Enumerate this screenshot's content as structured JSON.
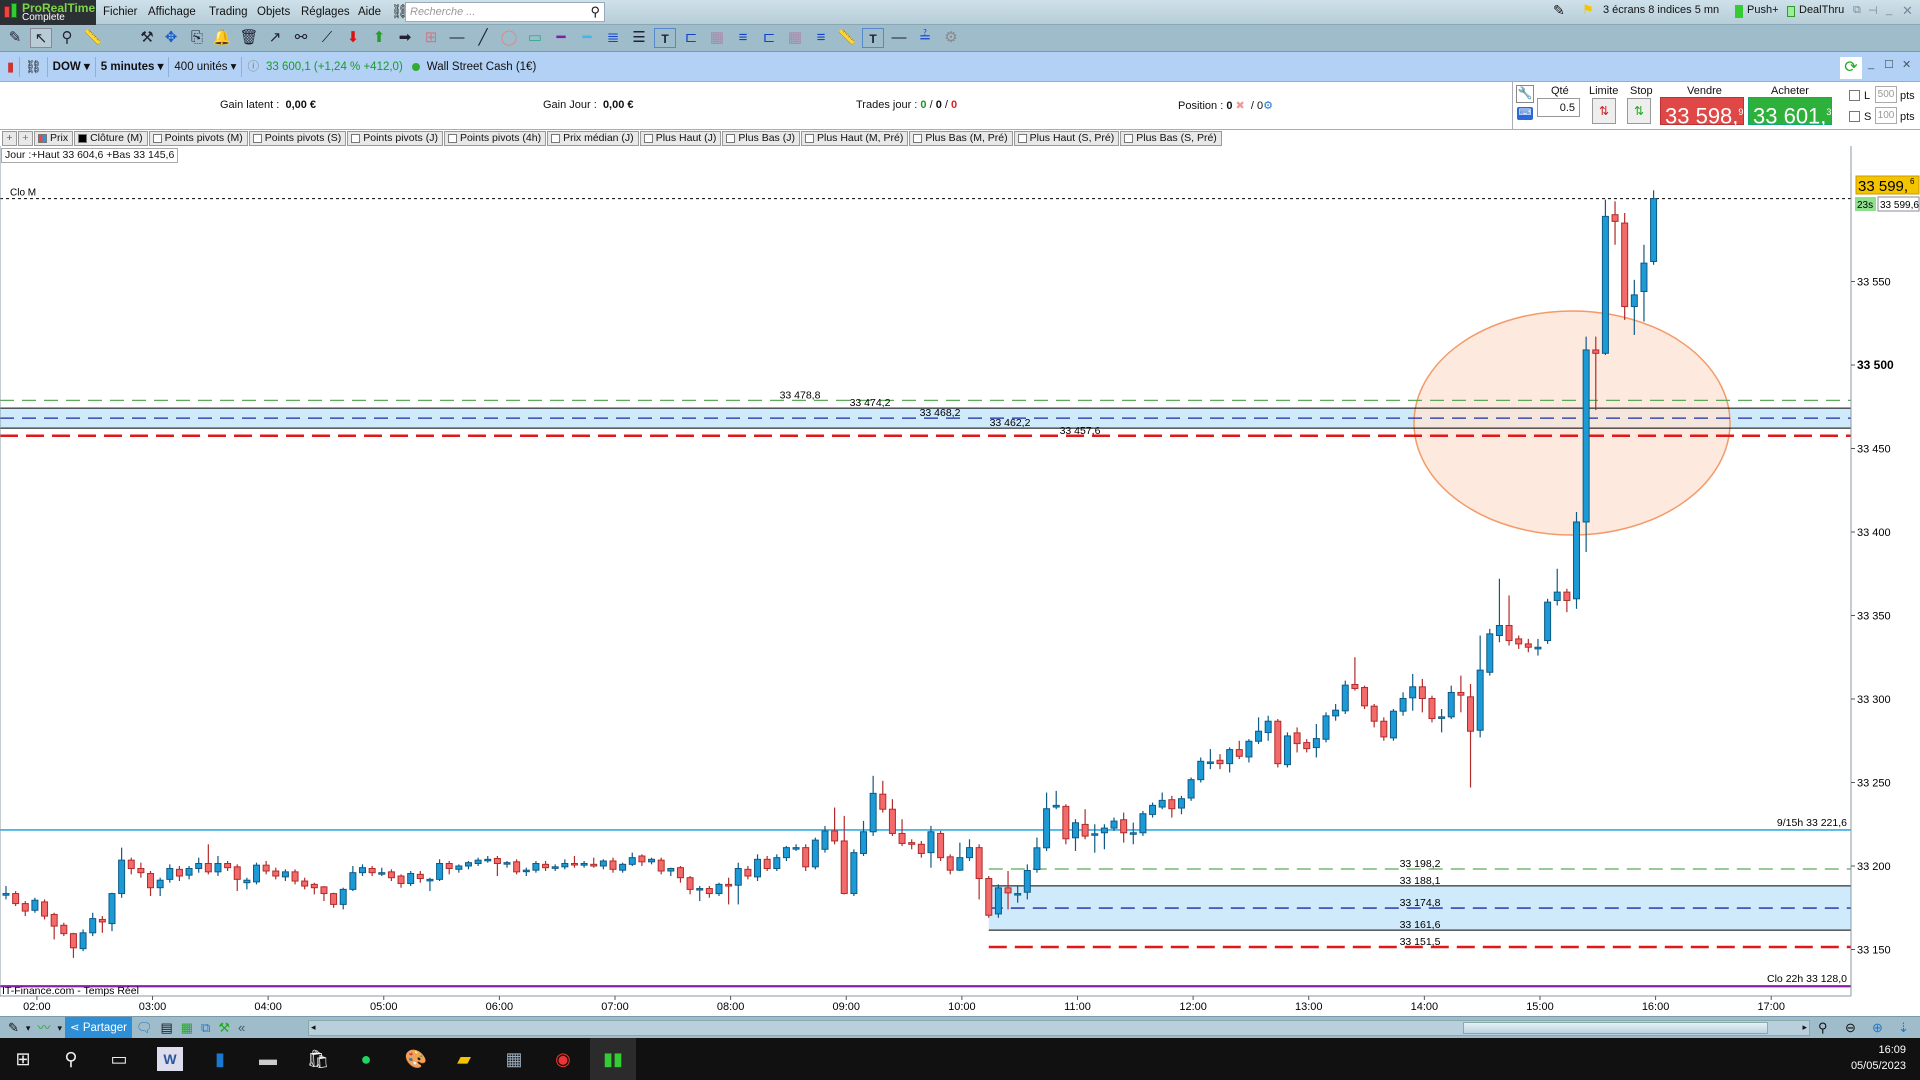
{
  "app": {
    "brand": "ProRealTime",
    "edition": "Complete"
  },
  "menu": [
    "Fichier",
    "Affichage",
    "Trading",
    "Objets",
    "Réglages",
    "Aide"
  ],
  "search": {
    "placeholder": "Recherche ..."
  },
  "topright": {
    "layout": "3 écrans 8 indices 5 mn",
    "push": "Push+",
    "dealthru": "DealThru"
  },
  "chart_header": {
    "instrument": "DOW",
    "timeframe": "5 minutes",
    "units": "400 unités",
    "quote": "33 600,1 (+1,24 % +412,0)",
    "market": "Wall Street Cash (1€)",
    "quote_color": "#1a9a2a"
  },
  "trading": {
    "gain_latent_label": "Gain latent :",
    "gain_latent": "0,00 €",
    "gain_jour_label": "Gain Jour :",
    "gain_jour": "0,00 €",
    "trades_label": "Trades jour :",
    "trades": [
      "0",
      "0",
      "0"
    ],
    "position_label": "Position :",
    "position": "0",
    "position_total": "/ 0",
    "qty_label": "Qté",
    "qty": "0.5",
    "limit_label": "Limite",
    "stop_label": "Stop",
    "sell_label": "Vendre",
    "sell_main": "33 598,",
    "sell_sup": "9",
    "buy_label": "Acheter",
    "buy_main": "33 601,",
    "buy_sup": "3",
    "l_label": "L",
    "l_pts": "500",
    "s_label": "S",
    "s_pts": "100",
    "pts": "pts"
  },
  "indicators": [
    "Prix",
    "Clôture (M)",
    "Points pivots (M)",
    "Points pivots (S)",
    "Points pivots (J)",
    "Points pivots (4h)",
    "Prix médian (J)",
    "Plus Haut (J)",
    "Plus Bas (J)",
    "Plus Haut (M, Pré)",
    "Plus Bas (M, Pré)",
    "Plus Haut (S, Pré)",
    "Plus Bas (S, Pré)"
  ],
  "day_info": "Jour :+Haut 33 604,6 +Bas 33 145,6",
  "chart_data": {
    "type": "candlestick",
    "interval": "5 minutes",
    "up_color": "#1c9ad6",
    "down_color": "#f26a6a",
    "y_ticks": [
      {
        "v": 33550,
        "t": "33 550"
      },
      {
        "v": 33500,
        "t": "33 500"
      },
      {
        "v": 33450,
        "t": "33 450"
      },
      {
        "v": 33400,
        "t": "33 400"
      },
      {
        "v": 33350,
        "t": "33 350"
      },
      {
        "v": 33300,
        "t": "33 300"
      },
      {
        "v": 33250,
        "t": "33 250"
      },
      {
        "v": 33200,
        "t": "33 200"
      },
      {
        "v": 33150,
        "t": "33 150"
      }
    ],
    "x_ticks": [
      "02:00",
      "03:00",
      "04:00",
      "05:00",
      "06:00",
      "07:00",
      "08:00",
      "09:00",
      "10:00",
      "11:00",
      "12:00",
      "13:00",
      "14:00",
      "15:00",
      "16:00",
      "17:00"
    ],
    "current_price": {
      "main": "33 599,",
      "sup": "6",
      "value": 33599.6,
      "countdown": "23s",
      "box": "33 599,6"
    },
    "close_m": {
      "label": "Clo M",
      "value": 33599.6
    },
    "h_lines": [
      {
        "value": 33221.6,
        "label": "9/15h 33 221,6",
        "color": "#4cb8e8"
      },
      {
        "value": 33128.0,
        "label": "Clo 22h 33 128,0",
        "color": "#8a1fa8"
      }
    ],
    "pivot_sets": [
      {
        "from": "full",
        "levels": [
          {
            "value": 33478.8,
            "label": "33 478,8",
            "color": "#5aaa5a",
            "style": "dash"
          },
          {
            "value": 33474.2,
            "label": "33 474,2",
            "color": "#000000",
            "style": "solid"
          },
          {
            "value": 33468.2,
            "label": "33 468,2",
            "color": "#1a2aa8",
            "style": "dash"
          },
          {
            "value": 33462.2,
            "label": "33 462,2",
            "color": "#000000",
            "style": "solid"
          },
          {
            "value": 33457.6,
            "label": "33 457,6",
            "color": "#e01818",
            "style": "thick"
          }
        ]
      },
      {
        "from": "10:15",
        "levels": [
          {
            "value": 33198.2,
            "label": "33 198,2",
            "color": "#5aaa5a",
            "style": "dash"
          },
          {
            "value": 33188.1,
            "label": "33 188,1",
            "color": "#000000",
            "style": "solid"
          },
          {
            "value": 33174.8,
            "label": "33 174,8",
            "color": "#1a2aa8",
            "style": "dash"
          },
          {
            "value": 33161.6,
            "label": "33 161,6",
            "color": "#000000",
            "style": "solid"
          },
          {
            "value": 33151.5,
            "label": "33 151,5",
            "color": "#e01818",
            "style": "thick"
          }
        ]
      }
    ],
    "band_color": "#cfeafb",
    "highlight_ellipse": {
      "color": "#f39a68",
      "fill": "#fde4d6"
    },
    "candles": [
      [
        33182.5,
        33188,
        33180,
        33183.5
      ],
      [
        33183.5,
        33185,
        33176,
        33177.5
      ],
      [
        33177.5,
        33179,
        33170,
        33173
      ],
      [
        33173.5,
        33181,
        33172,
        33179.5
      ],
      [
        33178.5,
        33180,
        33168,
        33170
      ],
      [
        33171,
        33172,
        33156,
        33164
      ],
      [
        33164.5,
        33166,
        33158,
        33159.5
      ],
      [
        33159.5,
        33160,
        33145,
        33151
      ],
      [
        33150.5,
        33162,
        33149,
        33160
      ],
      [
        33160,
        33172,
        33158,
        33168.5
      ],
      [
        33168,
        33170,
        33160,
        33166.5
      ],
      [
        33165.5,
        33184,
        33161,
        33183.5
      ],
      [
        33183.5,
        33211,
        33181,
        33203.5
      ],
      [
        33203.5,
        33205,
        33195,
        33198.5
      ],
      [
        33198.5,
        33202,
        33193,
        33196
      ],
      [
        33195.5,
        33197,
        33182,
        33187
      ],
      [
        33187,
        33193,
        33182,
        33191.5
      ],
      [
        33192,
        33201,
        33190,
        33198.5
      ],
      [
        33198,
        33200,
        33191,
        33194
      ],
      [
        33194.5,
        33200,
        33192,
        33198.5
      ],
      [
        33198.5,
        33205,
        33196,
        33201.5
      ],
      [
        33201.5,
        33213,
        33195,
        33196.5
      ],
      [
        33196.5,
        33206,
        33194,
        33201.5
      ],
      [
        33201.5,
        33203,
        33197,
        33199
      ],
      [
        33199.5,
        33201,
        33185,
        33192
      ],
      [
        33190,
        33193,
        33186,
        33191.5
      ],
      [
        33190.5,
        33202,
        33189,
        33200.5
      ],
      [
        33200.5,
        33203,
        33195,
        33197
      ],
      [
        33197,
        33199,
        33192,
        33194
      ],
      [
        33193.5,
        33198,
        33191,
        33196.5
      ],
      [
        33196.5,
        33198,
        33189,
        33191
      ],
      [
        33191,
        33193,
        33186,
        33188
      ],
      [
        33189,
        33190,
        33183,
        33187
      ],
      [
        33187.5,
        33188,
        33179,
        33183.5
      ],
      [
        33183.5,
        33184,
        33175,
        33177
      ],
      [
        33177,
        33187,
        33174,
        33186
      ],
      [
        33186,
        33200,
        33185,
        33196
      ],
      [
        33196,
        33201,
        33194,
        33199
      ],
      [
        33198.5,
        33200,
        33194,
        33196
      ],
      [
        33196,
        33199,
        33194,
        33196
      ],
      [
        33196.5,
        33198,
        33191,
        33193
      ],
      [
        33194,
        33195,
        33187,
        33189.5
      ],
      [
        33189.5,
        33197,
        33188,
        33195.5
      ],
      [
        33195,
        33197,
        33190,
        33192.5
      ],
      [
        33192,
        33193,
        33185,
        33192
      ],
      [
        33192,
        33204,
        33191,
        33201.5
      ],
      [
        33201.5,
        33203,
        33195,
        33198.5
      ],
      [
        33198,
        33201,
        33196,
        33200
      ],
      [
        33200,
        33203,
        33198,
        33202
      ],
      [
        33201.5,
        33205,
        33200,
        33203.5
      ],
      [
        33203.5,
        33206,
        33202,
        33204
      ],
      [
        33204.5,
        33206,
        33194,
        33201.5
      ],
      [
        33201.5,
        33203,
        33199,
        33202
      ],
      [
        33202.5,
        33204,
        33195,
        33196.5
      ],
      [
        33197,
        33199,
        33194,
        33197.5
      ],
      [
        33197.5,
        33203,
        33196,
        33201.5
      ],
      [
        33201,
        33203,
        33197,
        33199
      ],
      [
        33199,
        33201,
        33197,
        33199.5
      ],
      [
        33199.5,
        33204,
        33198,
        33201.5
      ],
      [
        33201.5,
        33206,
        33199,
        33201
      ],
      [
        33200.5,
        33203,
        33199,
        33201.5
      ],
      [
        33201,
        33205,
        33199,
        33200
      ],
      [
        33200,
        33204,
        33198,
        33203
      ],
      [
        33203,
        33205,
        33196,
        33198
      ],
      [
        33197.5,
        33202,
        33196,
        33201
      ],
      [
        33201,
        33208,
        33200,
        33205
      ],
      [
        33206,
        33207,
        33200,
        33202.5
      ],
      [
        33202.5,
        33205,
        33201,
        33204
      ],
      [
        33203.5,
        33205,
        33195,
        33197
      ],
      [
        33197,
        33199,
        33194,
        33198.5
      ],
      [
        33199,
        33200,
        33190,
        33193
      ],
      [
        33193,
        33194,
        33183,
        33186
      ],
      [
        33186,
        33188,
        33179,
        33186.5
      ],
      [
        33186.5,
        33188,
        33181,
        33183.5
      ],
      [
        33183.5,
        33190,
        33182,
        33189
      ],
      [
        33189,
        33193,
        33177,
        33188
      ],
      [
        33188.5,
        33202,
        33177,
        33198.5
      ],
      [
        33198,
        33200,
        33192,
        33194
      ],
      [
        33193.5,
        33207,
        33191,
        33204
      ],
      [
        33204,
        33206,
        33197,
        33198.5
      ],
      [
        33198.5,
        33207,
        33197,
        33205
      ],
      [
        33205,
        33212,
        33203,
        33211
      ],
      [
        33211,
        33213,
        33209,
        33211
      ],
      [
        33211,
        33213,
        33197,
        33199.5
      ],
      [
        33199.5,
        33217,
        33198,
        33215.5
      ],
      [
        33210,
        33224,
        33208,
        33221
      ],
      [
        33221,
        33235,
        33213,
        33215
      ],
      [
        33215,
        33230,
        33183,
        33183.5
      ],
      [
        33183.5,
        33210,
        33182,
        33208
      ],
      [
        33207.5,
        33227,
        33206,
        33220.5
      ],
      [
        33220.5,
        33254,
        33218,
        33243.5
      ],
      [
        33243,
        33251,
        33232,
        33234
      ],
      [
        33234,
        33240,
        33218,
        33219.5
      ],
      [
        33219.5,
        33228,
        33212,
        33213.5
      ],
      [
        33214,
        33216,
        33210,
        33213
      ],
      [
        33213,
        33215,
        33205,
        33207.5
      ],
      [
        33208,
        33224,
        33199,
        33220.5
      ],
      [
        33219.5,
        33221,
        33203,
        33205
      ],
      [
        33205.5,
        33207,
        33195,
        33197.5
      ],
      [
        33197.5,
        33214,
        33197,
        33205
      ],
      [
        33205,
        33216,
        33203,
        33211
      ],
      [
        33211,
        33213,
        33180,
        33192.5
      ],
      [
        33192.5,
        33194,
        33169,
        33170.5
      ],
      [
        33171.3,
        33189,
        33169,
        33186.9
      ],
      [
        33186.9,
        33197,
        33174,
        33183.9
      ],
      [
        33183.5,
        33188,
        33178,
        33183.5
      ],
      [
        33184.3,
        33201,
        33180,
        33197.3
      ],
      [
        33197.9,
        33217,
        33196,
        33210.9
      ],
      [
        33210.9,
        33244,
        33209,
        33234.3
      ],
      [
        33235.3,
        33245,
        33234,
        33236.3
      ],
      [
        33235.7,
        33237,
        33213,
        33216.3
      ],
      [
        33216.9,
        33228,
        33209,
        33225.9
      ],
      [
        33224.9,
        33234,
        33216,
        33217.9
      ],
      [
        33218.9,
        33225,
        33208,
        33219.3
      ],
      [
        33219.9,
        33225,
        33210,
        33222.7
      ],
      [
        33222.7,
        33229,
        33221,
        33226.9
      ],
      [
        33227.7,
        33232,
        33214,
        33219.9
      ],
      [
        33219.9,
        33226,
        33213,
        33219.9
      ],
      [
        33219.9,
        33233,
        33218,
        33231.3
      ],
      [
        33230.9,
        33238,
        33229,
        33236.3
      ],
      [
        33235.3,
        33244,
        33234,
        33239.3
      ],
      [
        33239.7,
        33242,
        33229,
        33234.3
      ],
      [
        33234.7,
        33242,
        33231,
        33240.3
      ],
      [
        33240.7,
        33253,
        33239,
        33251.7
      ],
      [
        33251.7,
        33265,
        33250,
        33262.7
      ],
      [
        33262.3,
        33270,
        33258,
        33262.3
      ],
      [
        33263.3,
        33267,
        33258,
        33261.3
      ],
      [
        33261.3,
        33271,
        33256,
        33269.7
      ],
      [
        33269.7,
        33275,
        33264,
        33265.7
      ],
      [
        33265.3,
        33276,
        33262,
        33274.7
      ],
      [
        33274.7,
        33289,
        33273,
        33280.7
      ],
      [
        33279.9,
        33290,
        33275,
        33286.7
      ],
      [
        33286.7,
        33288,
        33259,
        33261.3
      ],
      [
        33260.7,
        33280,
        33259,
        33277.9
      ],
      [
        33279.7,
        33283,
        33268,
        33273.3
      ],
      [
        33273.9,
        33276,
        33268,
        33270.3
      ],
      [
        33270.9,
        33285,
        33265,
        33276.3
      ],
      [
        33275.9,
        33292,
        33274,
        33289.9
      ],
      [
        33289.9,
        33297,
        33287,
        33293.3
      ],
      [
        33292.9,
        33311,
        33291,
        33308.3
      ],
      [
        33308.7,
        33325,
        33305,
        33306.3
      ],
      [
        33306.9,
        33308,
        33294,
        33295.9
      ],
      [
        33295.7,
        33297,
        33283,
        33286.7
      ],
      [
        33286.7,
        33289,
        33275,
        33277.3
      ],
      [
        33276.7,
        33294,
        33275,
        33292.7
      ],
      [
        33292.7,
        33304,
        33290,
        33300.3
      ],
      [
        33300.7,
        33315,
        33293,
        33307.3
      ],
      [
        33307.3,
        33312,
        33292,
        33300.3
      ],
      [
        33300.3,
        33302,
        33286,
        33288.3
      ],
      [
        33289.3,
        33294,
        33280,
        33289.3
      ],
      [
        33289.3,
        33308,
        33288,
        33303.9
      ],
      [
        33303.9,
        33314,
        33292,
        33302.3
      ],
      [
        33301.3,
        33309,
        33247,
        33280.7
      ],
      [
        33281.3,
        33338,
        33277,
        33317.3
      ],
      [
        33316,
        33342,
        33314,
        33339
      ],
      [
        33338,
        33372,
        33334,
        33344
      ],
      [
        33344,
        33362,
        33332,
        33335
      ],
      [
        33336,
        33338,
        33330,
        33333
      ],
      [
        33333,
        33336,
        33328,
        33331
      ],
      [
        33330,
        33336,
        33326,
        33331
      ],
      [
        33335,
        33360,
        33333,
        33358
      ],
      [
        33359,
        33378,
        33356,
        33364
      ],
      [
        33364,
        33366,
        33352,
        33359
      ],
      [
        33360,
        33412,
        33354,
        33406
      ],
      [
        33406,
        33517,
        33388,
        33509
      ],
      [
        33509,
        33517,
        33473,
        33507
      ],
      [
        33507,
        33599,
        33506,
        33589
      ],
      [
        33590,
        33598,
        33572,
        33586
      ],
      [
        33585,
        33591,
        33527,
        33535
      ],
      [
        33535,
        33551,
        33518,
        33542
      ],
      [
        33544,
        33572,
        33526,
        33561
      ],
      [
        33562,
        33604.6,
        33560,
        33599.6
      ]
    ]
  },
  "footer": {
    "source": "IT-Finance.com - Temps Réel",
    "share": "Partager"
  },
  "taskbar": {
    "time": "16:09",
    "date": "05/05/2023"
  }
}
